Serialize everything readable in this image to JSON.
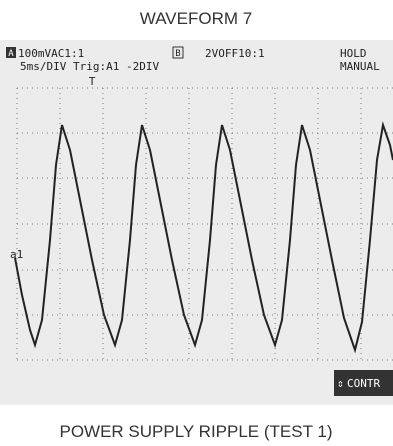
{
  "title": "WAVEFORM 7",
  "screen": {
    "channel_a": {
      "icon": "A",
      "setting": "100mVAC1:1"
    },
    "channel_b": {
      "icon": "B",
      "setting": "2VOFF10:1"
    },
    "timebase": "5ms/DIV Trig:A1 -2DIV",
    "status": [
      "HOLD",
      "MANUAL"
    ],
    "marker": "a1",
    "button": {
      "icon": "⇕",
      "label": "CONTR"
    }
  },
  "caption": "POWER SUPPLY RIPPLE (TEST 1)"
}
